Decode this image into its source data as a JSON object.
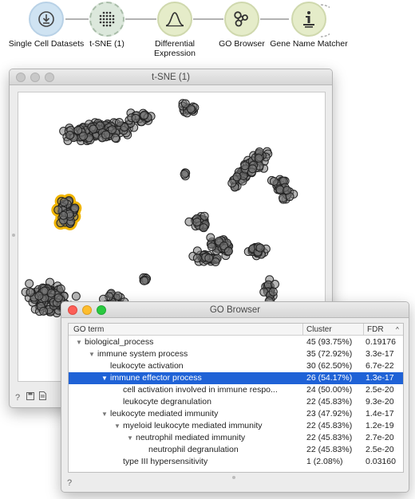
{
  "workflow": {
    "nodes": [
      {
        "label": "Single Cell Datasets",
        "icon": "download-icon",
        "color": "#cfe3f2"
      },
      {
        "label": "t-SNE (1)",
        "icon": "dot-grid-icon",
        "color": "#dce8dc"
      },
      {
        "label": "Differential\nExpression",
        "icon": "bell-curve-icon",
        "color": "#e5ecc9"
      },
      {
        "label": "GO Browser",
        "icon": "network-icon",
        "color": "#e5ecc9"
      },
      {
        "label": "Gene Name Matcher",
        "icon": "info-icon",
        "color": "#e5ecc9"
      }
    ]
  },
  "tsne_window": {
    "title": "t-SNE (1)",
    "selection_color": "#f0b400",
    "point_color": "#7a7a7a"
  },
  "go_window": {
    "title": "GO Browser",
    "columns": {
      "term": "GO term",
      "cluster": "Cluster",
      "fdr": "FDR",
      "sort_icon": "^"
    },
    "rows": [
      {
        "term": "biological_process",
        "cluster": "45  (93.75%)",
        "fdr": "0.19176",
        "level": 0,
        "expanded": true,
        "selected": false
      },
      {
        "term": "immune system process",
        "cluster": "35  (72.92%)",
        "fdr": "3.3e-17",
        "level": 1,
        "expanded": true,
        "selected": false
      },
      {
        "term": "leukocyte activation",
        "cluster": "30  (62.50%)",
        "fdr": "6.7e-22",
        "level": 2,
        "expanded": false,
        "selected": false
      },
      {
        "term": "immune effector process",
        "cluster": "26  (54.17%)",
        "fdr": "1.3e-17",
        "level": 2,
        "expanded": true,
        "selected": true
      },
      {
        "term": "cell activation involved in immune respo...",
        "cluster": "24  (50.00%)",
        "fdr": "2.5e-20",
        "level": 3,
        "expanded": false,
        "selected": false
      },
      {
        "term": "leukocyte degranulation",
        "cluster": "22  (45.83%)",
        "fdr": "9.3e-20",
        "level": 3,
        "expanded": false,
        "selected": false
      },
      {
        "term": "leukocyte mediated immunity",
        "cluster": "23  (47.92%)",
        "fdr": "1.4e-17",
        "level": 2,
        "expanded": true,
        "selected": false,
        "arrow_level": 2
      },
      {
        "term": "myeloid leukocyte mediated immunity",
        "cluster": "22  (45.83%)",
        "fdr": "1.2e-19",
        "level": 3,
        "expanded": true,
        "selected": false
      },
      {
        "term": "neutrophil mediated immunity",
        "cluster": "22  (45.83%)",
        "fdr": "2.7e-20",
        "level": 4,
        "expanded": true,
        "selected": false
      },
      {
        "term": "neutrophil degranulation",
        "cluster": "22  (45.83%)",
        "fdr": "2.5e-20",
        "level": 5,
        "expanded": false,
        "selected": false
      },
      {
        "term": "type III hypersensitivity",
        "cluster": "1  (2.08%)",
        "fdr": "0.03160",
        "level": 3,
        "expanded": false,
        "selected": false
      }
    ]
  },
  "footer_icons": [
    "help-icon",
    "save-icon",
    "report-icon"
  ]
}
